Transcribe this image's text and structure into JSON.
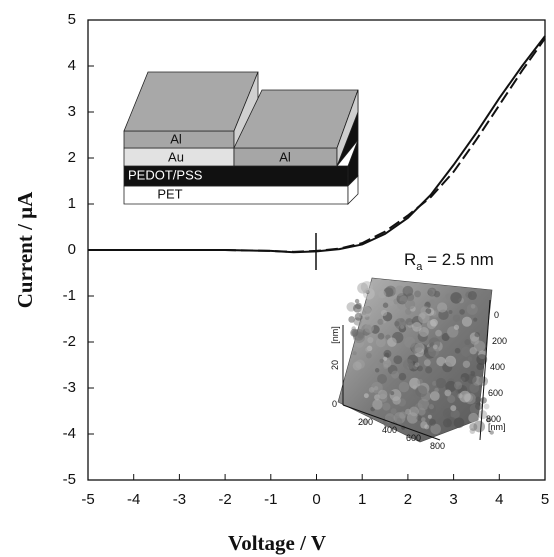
{
  "chart_data": {
    "type": "line",
    "xlabel": "Voltage / V",
    "ylabel": "Current / μA",
    "x": [
      -5,
      -4,
      -3,
      -2,
      -1,
      -0.5,
      0,
      0.5,
      1,
      1.5,
      2,
      2.5,
      3,
      3.5,
      4,
      4.5,
      5
    ],
    "series": [
      {
        "color": "#111111",
        "style": "solid",
        "values": [
          0,
          0,
          0,
          0,
          -0.02,
          -0.05,
          -0.03,
          0.02,
          0.12,
          0.35,
          0.7,
          1.2,
          1.85,
          2.55,
          3.3,
          4.0,
          4.65
        ]
      },
      {
        "color": "#111111",
        "style": "dashed",
        "values": [
          0,
          0,
          0,
          0,
          -0.02,
          -0.04,
          -0.02,
          0.03,
          0.15,
          0.4,
          0.75,
          1.15,
          1.7,
          2.4,
          3.15,
          3.9,
          4.6
        ]
      }
    ],
    "xlim": [
      -5,
      5
    ],
    "ylim": [
      -5,
      5
    ],
    "xticks": [
      -5,
      -4,
      -3,
      -2,
      -1,
      0,
      1,
      2,
      3,
      4,
      5
    ],
    "yticks": [
      -5,
      -4,
      -3,
      -2,
      -1,
      0,
      1,
      2,
      3,
      4,
      5
    ],
    "grid": false,
    "annotation": {
      "main": "R",
      "sub": "a",
      "rest": " = 2.5 nm"
    },
    "schematic": {
      "left_top": "Al",
      "left_mid": "Au",
      "right_top": "Al",
      "middle": "PEDOT/PSS",
      "bottom": "PET"
    },
    "afm": {
      "z_ticks": [
        0,
        20
      ],
      "z_unit": "[nm]",
      "x_ticks": [
        200,
        400,
        600,
        800
      ],
      "y_ticks": [
        0,
        200,
        400,
        600,
        800
      ],
      "y_unit": "[nm]",
      "x_unit": "[nm]"
    }
  }
}
